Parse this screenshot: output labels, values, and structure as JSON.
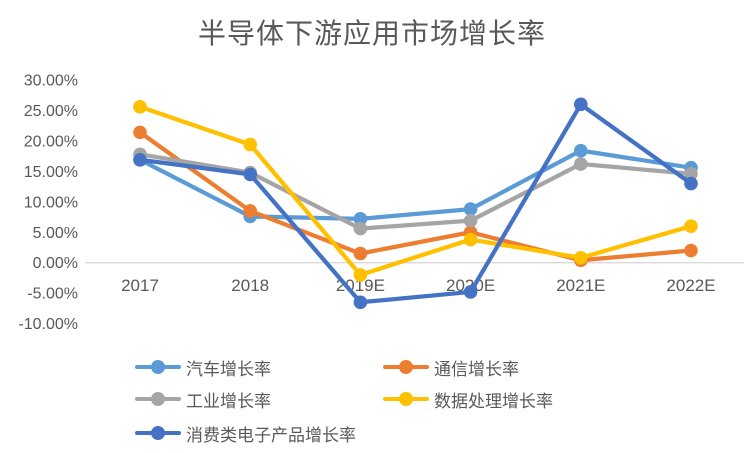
{
  "chart_data": {
    "type": "line",
    "title": "半导体下游应用市场增长率",
    "categories": [
      "2017",
      "2018",
      "2019E",
      "2020E",
      "2021E",
      "2022E"
    ],
    "series": [
      {
        "name": "汽车增长率",
        "color": "#5B9BD5",
        "values": [
          16.9,
          7.6,
          7.2,
          8.8,
          18.4,
          15.6
        ]
      },
      {
        "name": "通信增长率",
        "color": "#ED7D31",
        "values": [
          21.4,
          8.5,
          1.5,
          5.0,
          0.4,
          2.0
        ]
      },
      {
        "name": "工业增长率",
        "color": "#A5A5A5",
        "values": [
          17.8,
          14.8,
          5.6,
          6.9,
          16.2,
          14.6
        ]
      },
      {
        "name": "数据处理增长率",
        "color": "#FFC000",
        "values": [
          25.6,
          19.4,
          -2.0,
          3.8,
          0.8,
          6.0
        ]
      },
      {
        "name": "消费类电子产品增长率",
        "color": "#4472C4",
        "values": [
          16.9,
          14.5,
          -6.5,
          -4.8,
          26.0,
          13.0
        ]
      }
    ],
    "y_ticks": [
      "30.00%",
      "25.00%",
      "20.00%",
      "15.00%",
      "10.00%",
      "5.00%",
      "0.00%",
      "-5.00%",
      "-10.00%"
    ],
    "y_tick_values": [
      30,
      25,
      20,
      15,
      10,
      5,
      0,
      -5,
      -10
    ],
    "ylim": [
      -10,
      30
    ],
    "grid": "zero-line-only",
    "legend_position": "bottom",
    "colors": {
      "axis_text": "#595959",
      "title_text": "#595959",
      "zero_line": "#D9D9D9",
      "background": "#FFFFFF"
    }
  }
}
